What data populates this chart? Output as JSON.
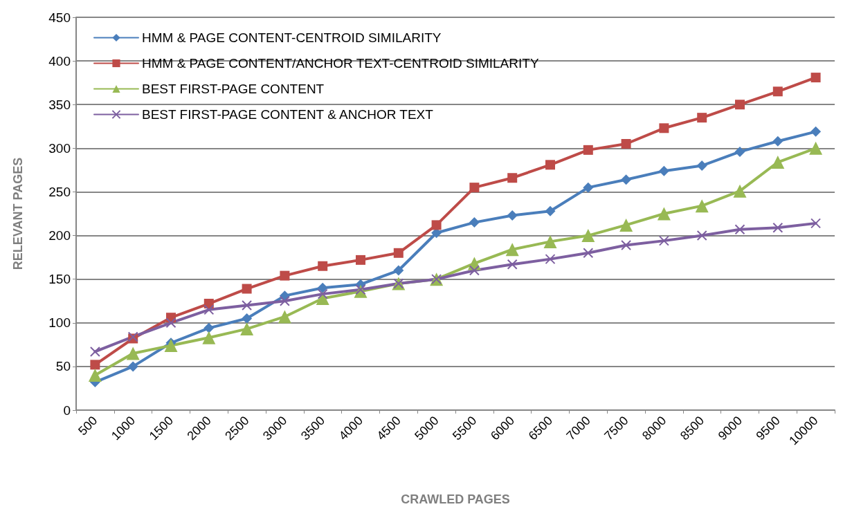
{
  "chart_data": {
    "type": "line",
    "xlabel": "CRAWLED PAGES",
    "ylabel": "RELEVANT PAGES",
    "categories": [
      "500",
      "1000",
      "1500",
      "2000",
      "2500",
      "3000",
      "3500",
      "4000",
      "4500",
      "5000",
      "5500",
      "6000",
      "6500",
      "7000",
      "7500",
      "8000",
      "8500",
      "9000",
      "9500",
      "10000"
    ],
    "ylim": [
      0,
      450
    ],
    "yticks": [
      0,
      50,
      100,
      150,
      200,
      250,
      300,
      350,
      400,
      450
    ],
    "grid": "y",
    "legend": "top left",
    "series": [
      {
        "name": "HMM & PAGE CONTENT-CENTROID SIMILARITY",
        "color": "#4a7ebb",
        "marker": "diamond",
        "values": [
          32,
          50,
          77,
          94,
          105,
          131,
          140,
          144,
          160,
          203,
          215,
          223,
          228,
          255,
          264,
          274,
          280,
          296,
          308,
          319
        ]
      },
      {
        "name": "HMM & PAGE CONTENT/ANCHOR TEXT-CENTROID SIMILARITY",
        "color": "#be4b48",
        "marker": "square",
        "values": [
          52,
          82,
          106,
          122,
          139,
          154,
          165,
          172,
          180,
          212,
          255,
          266,
          281,
          298,
          305,
          323,
          335,
          350,
          365,
          381
        ]
      },
      {
        "name": "BEST FIRST-PAGE CONTENT",
        "color": "#98b954",
        "marker": "triangle",
        "values": [
          40,
          65,
          74,
          83,
          93,
          107,
          128,
          136,
          145,
          150,
          168,
          184,
          193,
          200,
          212,
          225,
          234,
          251,
          284,
          300
        ]
      },
      {
        "name": "BEST FIRST-PAGE CONTENT & ANCHOR TEXT",
        "color": "#7d5fa0",
        "marker": "cross",
        "values": [
          67,
          84,
          100,
          115,
          120,
          125,
          133,
          138,
          145,
          150,
          160,
          167,
          173,
          180,
          189,
          194,
          200,
          207,
          209,
          214
        ]
      }
    ]
  }
}
